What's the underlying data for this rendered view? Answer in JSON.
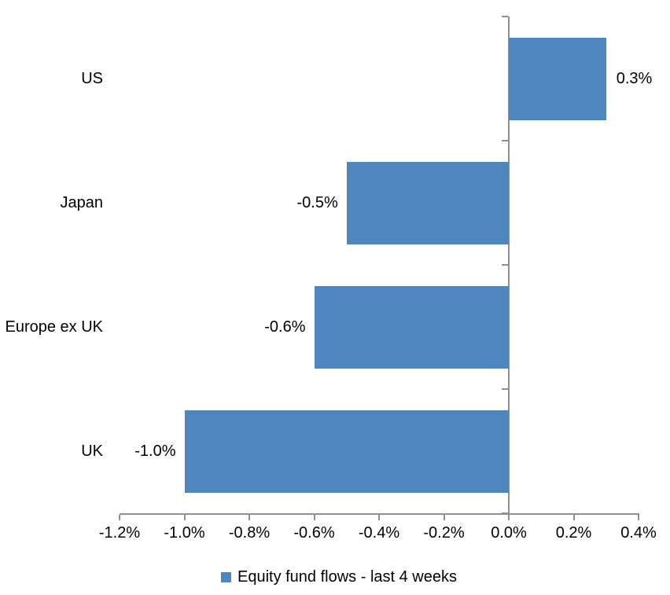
{
  "chart_data": {
    "type": "bar",
    "orientation": "horizontal",
    "categories": [
      "US",
      "Japan",
      "Europe ex UK",
      "UK"
    ],
    "values": [
      0.3,
      -0.5,
      -0.6,
      -1.0
    ],
    "data_labels": [
      "0.3%",
      "-0.5%",
      "-0.6%",
      "-1.0%"
    ],
    "series_name": "Equity fund flows - last 4 weeks",
    "xlim": [
      -1.2,
      0.4
    ],
    "x_ticks": [
      -1.2,
      -1.0,
      -0.8,
      -0.6,
      -0.4,
      -0.2,
      0.0,
      0.2,
      0.4
    ],
    "x_tick_labels": [
      "-1.2%",
      "-1.0%",
      "-0.8%",
      "-0.6%",
      "-0.4%",
      "-0.2%",
      "0.0%",
      "0.2%",
      "0.4%"
    ],
    "grid": false,
    "legend_position": "bottom",
    "legend_marker": "square-icon",
    "bar_color": "#4e86bd",
    "axis_color": "#8f8f8f",
    "text_color": "#000000"
  }
}
